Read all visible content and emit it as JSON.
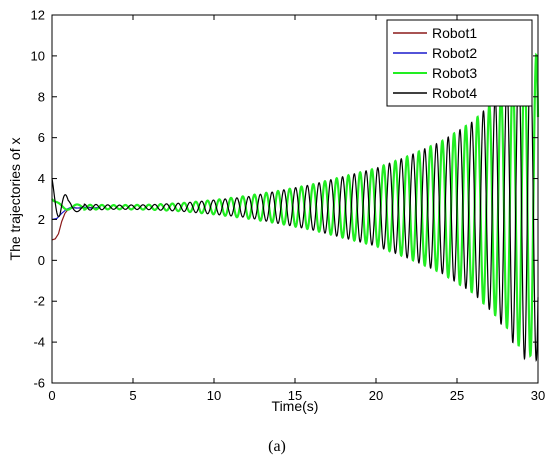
{
  "chart_data": {
    "type": "line",
    "xlabel": "Time(s)",
    "ylabel": "The trajectories of x",
    "xlim": [
      0,
      30
    ],
    "ylim": [
      -6,
      12
    ],
    "xticks": [
      0,
      5,
      10,
      15,
      20,
      25,
      30
    ],
    "yticks": [
      -6,
      -4,
      -2,
      0,
      2,
      4,
      6,
      8,
      10,
      12
    ],
    "grid": false,
    "legend_position": "top-right",
    "caption": "(a)",
    "series": [
      {
        "name": "Robot1",
        "color": "#8b1a1a",
        "x": [
          0,
          0.2,
          0.4,
          0.6,
          0.8,
          1.0,
          1.3,
          1.7,
          2.2,
          2.8
        ],
        "y": [
          1.0,
          1.05,
          1.3,
          1.9,
          2.3,
          2.5,
          2.58,
          2.55,
          2.6,
          2.55
        ]
      },
      {
        "name": "Robot2",
        "color": "#1a1acc",
        "x": [
          0,
          0.3,
          0.6,
          0.9,
          1.2,
          1.5,
          2.0,
          2.5,
          3.0
        ],
        "y": [
          2.0,
          2.05,
          2.3,
          2.5,
          2.6,
          2.55,
          2.6,
          2.55,
          2.6
        ]
      },
      {
        "name": "Robot3",
        "color": "#22ee22",
        "x": [
          0,
          30
        ],
        "y": [
          3.0,
          2.6
        ],
        "peaks_x": [
          1.0,
          2.0,
          4.0,
          6.0,
          8.0,
          10.0,
          12.0,
          14.0,
          16.0,
          18.0,
          20.0,
          22.0,
          24.0,
          26.0,
          27.0,
          28.0,
          29.0,
          30.0
        ],
        "amplitude": [
          0.15,
          0.12,
          0.1,
          0.12,
          0.2,
          0.35,
          0.55,
          0.8,
          1.1,
          1.5,
          1.9,
          2.5,
          3.2,
          4.2,
          5.0,
          5.8,
          7.0,
          7.5
        ],
        "center": 2.6
      },
      {
        "name": "Robot4",
        "color": "#000000",
        "x": [
          0,
          30
        ],
        "y": [
          4.0,
          2.6
        ],
        "peaks_x": [
          0.5,
          1.0,
          2.0,
          4.0,
          6.0,
          8.0,
          10.0,
          12.0,
          14.0,
          16.0,
          18.0,
          20.0,
          22.0,
          24.0,
          26.0,
          27.0,
          28.0,
          29.0,
          30.0
        ],
        "amplitude": [
          1.3,
          0.3,
          0.15,
          0.1,
          0.12,
          0.2,
          0.35,
          0.5,
          0.8,
          1.1,
          1.5,
          1.9,
          2.5,
          3.2,
          4.2,
          5.0,
          6.0,
          7.4,
          7.5
        ],
        "center": 2.6
      }
    ]
  }
}
